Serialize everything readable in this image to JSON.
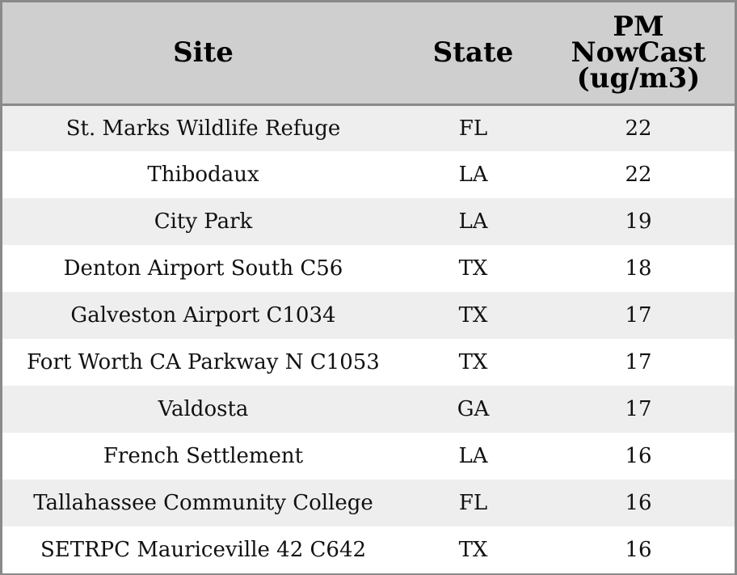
{
  "chart_data": {
    "type": "table",
    "columns": [
      "Site",
      "State",
      "PM NowCast (ug/m3)"
    ],
    "header_lines": {
      "site": [
        "Site"
      ],
      "state": [
        "State"
      ],
      "pm": [
        "PM",
        "NowCast",
        "(ug/m3)"
      ]
    },
    "rows": [
      [
        "St. Marks Wildlife Refuge",
        "FL",
        "22"
      ],
      [
        "Thibodaux",
        "LA",
        "22"
      ],
      [
        "City Park",
        "LA",
        "19"
      ],
      [
        "Denton Airport South C56",
        "TX",
        "18"
      ],
      [
        "Galveston Airport C1034",
        "TX",
        "17"
      ],
      [
        "Fort Worth CA Parkway N C1053",
        "TX",
        "17"
      ],
      [
        "Valdosta",
        "GA",
        "17"
      ],
      [
        "French Settlement",
        "LA",
        "16"
      ],
      [
        "Tallahassee Community College",
        "FL",
        "16"
      ],
      [
        "SETRPC Mauriceville 42 C642",
        "TX",
        "16"
      ]
    ]
  },
  "colors": {
    "header_bg": "#cfcfcf",
    "odd_row_bg": "#eeeeee",
    "even_row_bg": "#ffffff",
    "border": "#8a8a8a"
  }
}
